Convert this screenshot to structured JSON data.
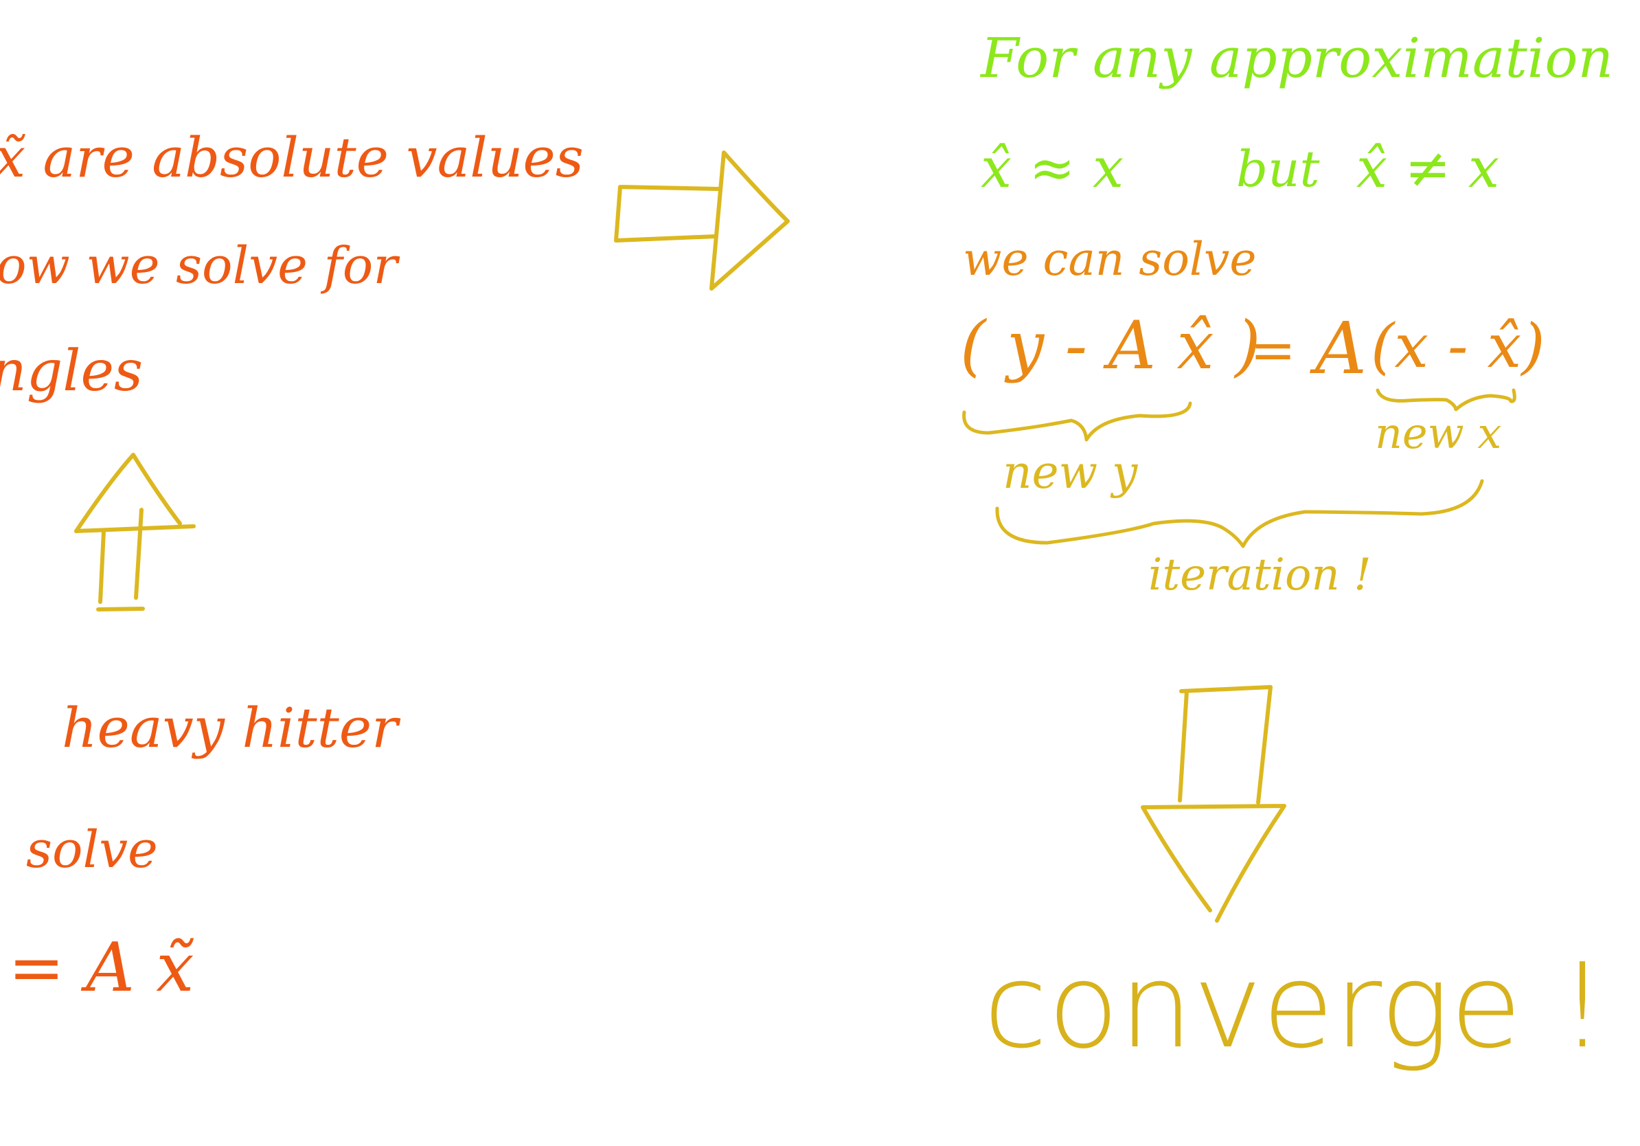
{
  "colors": {
    "left_text": "#ee5a14",
    "approx_text": "#8ce81c",
    "equation_text": "#ea8a14",
    "arrows": "#dcb820",
    "converge_text": "#d8b21c",
    "side_bar": "#8e33ad",
    "background": "#ffffff"
  },
  "left_column": {
    "line1": "x̃ are absolute values",
    "line2": "ow we solve for",
    "line3": "ngles",
    "line4": "heavy hitter",
    "line5": "solve",
    "line6": "= A x̃"
  },
  "right_column": {
    "approx_heading": "For any approximation",
    "approx_relation": "x̂ ≈ x",
    "but_word": "but",
    "approx_not_equal": "x̂ ≠ x",
    "we_can_solve": "we can solve",
    "eq_left": "( y - A x̂ )",
    "eq_equals": "=",
    "eq_A": "A",
    "eq_right": "(x - x̂)",
    "new_y": "new y",
    "new_x": "new x",
    "iteration": "iteration !",
    "converge": "converge !"
  },
  "arrows": [
    {
      "name": "right-arrow-icon",
      "direction": "right"
    },
    {
      "name": "up-arrow-icon",
      "direction": "up"
    },
    {
      "name": "down-arrow-icon",
      "direction": "down"
    }
  ],
  "braces": [
    {
      "name": "new-y-brace",
      "label_key": "new_y"
    },
    {
      "name": "new-x-brace",
      "label_key": "new_x"
    },
    {
      "name": "iteration-brace",
      "label_key": "iteration"
    }
  ]
}
